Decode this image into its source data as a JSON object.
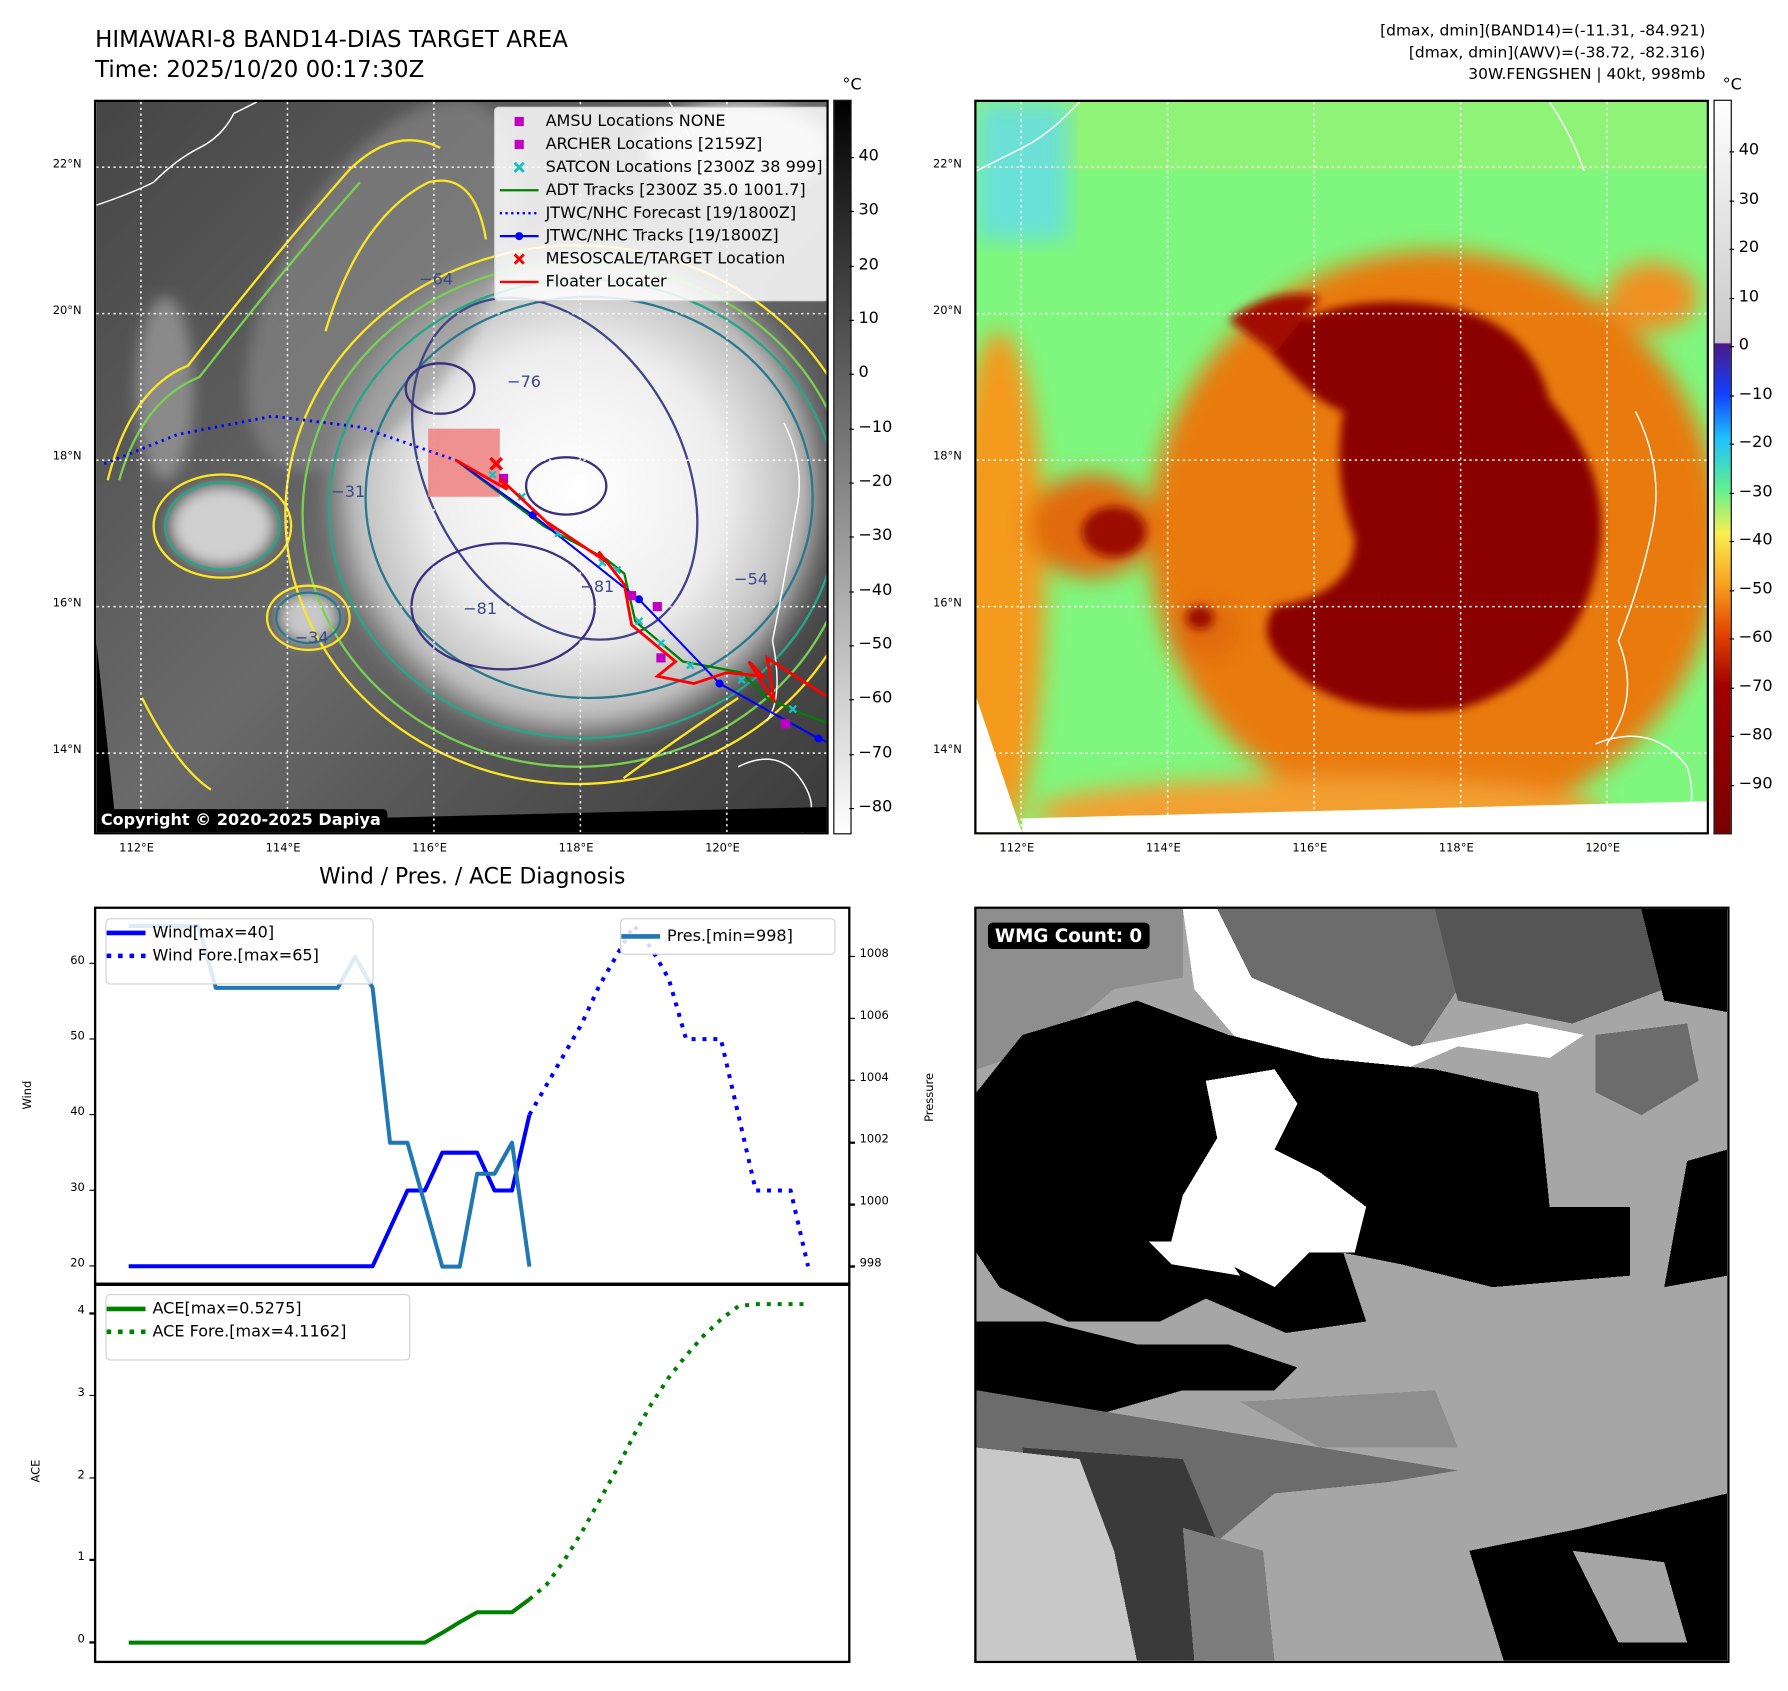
{
  "header": {
    "title": "HIMAWARI-8 BAND14-DIAS TARGET AREA",
    "time": "Time: 2025/10/20 00:17:30Z",
    "stats_band14": "[dmax, dmin](BAND14)=(-11.31, -84.921)",
    "stats_awv": "[dmax, dmin](AWV)=(-38.72, -82.316)",
    "storm": "30W.FENGSHEN | 40kt, 998mb"
  },
  "maps": {
    "unit": "°C",
    "lon_ticks": [
      "112°E",
      "114°E",
      "116°E",
      "118°E",
      "120°E"
    ],
    "lat_ticks": [
      "22°N",
      "20°N",
      "18°N",
      "16°N",
      "14°N"
    ],
    "left_colorbar_ticks": [
      "40",
      "30",
      "20",
      "10",
      "0",
      "−10",
      "−20",
      "−30",
      "−40",
      "−50",
      "−60",
      "−70",
      "−80"
    ],
    "right_colorbar_ticks": [
      "40",
      "30",
      "20",
      "10",
      "0",
      "−10",
      "−20",
      "−30",
      "−40",
      "−50",
      "−60",
      "−70",
      "−80",
      "−90"
    ],
    "copyright": "Copyright © 2020-2025 Dapiya",
    "legend": [
      {
        "label": "AMSU Locations NONE",
        "key": "square",
        "color": "#c000c0"
      },
      {
        "label": "ARCHER Locations [2159Z]",
        "key": "square",
        "color": "#c000c0"
      },
      {
        "label": "SATCON Locations [2300Z 38 999]",
        "key": "x",
        "color": "#17c0c0"
      },
      {
        "label": "ADT Tracks [2300Z 35.0 1001.7]",
        "key": "line",
        "color": "#008000"
      },
      {
        "label": "JTWC/NHC Forecast [19/1800Z]",
        "key": "dotted",
        "color": "#0000ff"
      },
      {
        "label": "JTWC/NHC Tracks [19/1800Z]",
        "key": "line-dot",
        "color": "#0000ff"
      },
      {
        "label": "MESOSCALE/TARGET Location",
        "key": "x",
        "color": "#ff0000"
      },
      {
        "label": "Floater Locater",
        "key": "line",
        "color": "#ff0000"
      }
    ],
    "contour_labels": [
      {
        "text": "−81",
        "lon": 118.0,
        "lat": 16.2
      },
      {
        "text": "−81",
        "lon": 116.4,
        "lat": 15.9
      },
      {
        "text": "−54",
        "lon": 120.1,
        "lat": 16.3
      },
      {
        "text": "−76",
        "lon": 117.0,
        "lat": 19.0
      },
      {
        "text": "−64",
        "lon": 115.8,
        "lat": 20.4
      },
      {
        "text": "−31",
        "lon": 114.6,
        "lat": 17.5
      },
      {
        "text": "−34",
        "lon": 114.1,
        "lat": 15.5
      }
    ],
    "tracks": {
      "jtwc_forecast": [
        [
          111.5,
          17.95
        ],
        [
          112.5,
          18.35
        ],
        [
          113.8,
          18.6
        ],
        [
          115.0,
          18.45
        ],
        [
          116.3,
          18.0
        ]
      ],
      "jtwc_track": [
        [
          116.3,
          18.0
        ],
        [
          117.35,
          17.25
        ],
        [
          118.8,
          16.1
        ],
        [
          119.9,
          14.95
        ],
        [
          121.25,
          14.2
        ],
        [
          121.5,
          14.1
        ]
      ],
      "jtwc_points": [
        [
          117.35,
          17.25
        ],
        [
          118.8,
          16.1
        ],
        [
          119.9,
          14.95
        ],
        [
          121.25,
          14.2
        ]
      ],
      "adt": [
        [
          116.3,
          18.0
        ],
        [
          117.5,
          17.1
        ],
        [
          118.35,
          16.65
        ],
        [
          118.6,
          16.45
        ],
        [
          118.75,
          15.8
        ],
        [
          119.4,
          15.25
        ],
        [
          120.2,
          15.1
        ],
        [
          120.55,
          14.75
        ],
        [
          121.0,
          14.55
        ],
        [
          121.4,
          14.4
        ]
      ],
      "floater": [
        [
          116.3,
          18.0
        ],
        [
          117.0,
          17.6
        ],
        [
          116.9,
          17.75
        ],
        [
          117.65,
          17.05
        ],
        [
          117.55,
          17.15
        ],
        [
          118.3,
          16.65
        ],
        [
          118.25,
          16.75
        ],
        [
          118.6,
          16.3
        ],
        [
          118.7,
          15.75
        ],
        [
          119.3,
          15.25
        ],
        [
          119.05,
          15.05
        ],
        [
          119.55,
          14.95
        ],
        [
          120.0,
          15.1
        ],
        [
          120.5,
          15.05
        ],
        [
          120.3,
          15.25
        ],
        [
          120.65,
          14.7
        ],
        [
          120.55,
          15.3
        ],
        [
          121.4,
          14.75
        ]
      ],
      "satcon": [
        [
          116.8,
          17.8
        ],
        [
          117.2,
          17.5
        ],
        [
          117.7,
          17.0
        ],
        [
          118.3,
          16.6
        ],
        [
          118.5,
          16.5
        ],
        [
          118.8,
          15.8
        ],
        [
          119.1,
          15.5
        ],
        [
          119.5,
          15.2
        ],
        [
          120.2,
          15.0
        ],
        [
          120.9,
          14.6
        ]
      ],
      "archer": [
        [
          116.95,
          17.75
        ],
        [
          118.7,
          16.15
        ],
        [
          119.05,
          16.0
        ],
        [
          119.1,
          15.3
        ],
        [
          120.8,
          14.4
        ]
      ],
      "target": [
        116.85,
        17.95
      ],
      "target_box": [
        115.92,
        17.5,
        116.9,
        18.43
      ]
    }
  },
  "diagnosis": {
    "title": "Wind / Pres. / ACE Diagnosis",
    "wmg_count": "WMG Count: 0"
  },
  "chart_data": [
    {
      "type": "line",
      "title": "Wind / Pres. / ACE Diagnosis",
      "ylabel": "Wind",
      "y2label": "Pressure",
      "xlim": [
        -1.86,
        41.3
      ],
      "ylim": [
        17.7,
        67.2
      ],
      "y2lim": [
        997.45,
        1009.55
      ],
      "yticks": [
        "20",
        "30",
        "40",
        "50",
        "60"
      ],
      "y2ticks": [
        "998",
        "1000",
        "1002",
        "1004",
        "1006",
        "1008"
      ],
      "series": [
        {
          "name": "Wind[max=40]",
          "axis": "left",
          "style": "solid",
          "color": "#0000ff",
          "x": [
            0,
            1,
            2,
            3,
            4,
            5,
            6,
            7,
            8,
            9,
            10,
            11,
            12,
            13,
            14,
            15,
            16,
            17,
            18,
            19,
            20,
            21,
            22,
            23
          ],
          "values": [
            20,
            20,
            20,
            20,
            20,
            20,
            20,
            20,
            20,
            20,
            20,
            20,
            20,
            20,
            20,
            25,
            30,
            30,
            35,
            35,
            35,
            30,
            30,
            40
          ]
        },
        {
          "name": "Wind Fore.[max=65]",
          "axis": "left",
          "style": "dotted",
          "color": "#0000ff",
          "x": [
            23,
            24,
            25,
            26,
            27,
            28,
            29,
            30,
            31,
            32,
            33,
            34,
            35,
            36,
            37,
            38,
            39
          ],
          "values": [
            40,
            44,
            48,
            52,
            57,
            61,
            65,
            62,
            58,
            50,
            50,
            50,
            40,
            30,
            30,
            30,
            20
          ]
        },
        {
          "name": "Pres.[min=998]",
          "axis": "right",
          "style": "solid",
          "color": "#1f77b4",
          "x": [
            0,
            1,
            2,
            3,
            4,
            5,
            6,
            7,
            8,
            9,
            10,
            11,
            12,
            13,
            14,
            15,
            16,
            17,
            18,
            19,
            20,
            21,
            22,
            23
          ],
          "values": [
            1009,
            1009,
            1009,
            1009,
            1009,
            1007,
            1007,
            1007,
            1007,
            1007,
            1007,
            1007,
            1007,
            1008,
            1007,
            1002,
            1002,
            1000,
            998,
            998,
            1001,
            1001,
            1002,
            998
          ]
        }
      ]
    },
    {
      "type": "line",
      "ylabel": "ACE",
      "xlim": [
        -1.86,
        41.3
      ],
      "ylim": [
        -0.22,
        4.35
      ],
      "yticks": [
        "0",
        "1",
        "2",
        "3",
        "4"
      ],
      "series": [
        {
          "name": "ACE[max=0.5275]",
          "style": "solid",
          "color": "#008000",
          "x": [
            0,
            1,
            2,
            3,
            4,
            5,
            6,
            7,
            8,
            9,
            10,
            11,
            12,
            13,
            14,
            15,
            16,
            17,
            18,
            19,
            20,
            21,
            22,
            23
          ],
          "values": [
            0,
            0,
            0,
            0,
            0,
            0,
            0,
            0,
            0,
            0,
            0,
            0,
            0,
            0,
            0,
            0,
            0,
            0,
            0.12,
            0.25,
            0.37,
            0.37,
            0.37,
            0.5275
          ]
        },
        {
          "name": "ACE Fore.[max=4.1162]",
          "style": "dotted",
          "color": "#008000",
          "x": [
            23,
            24,
            25,
            26,
            27,
            28,
            29,
            30,
            31,
            32,
            33,
            34,
            35,
            36,
            37,
            38,
            39
          ],
          "values": [
            0.5275,
            0.71,
            1.0,
            1.34,
            1.72,
            2.1,
            2.52,
            2.9,
            3.22,
            3.49,
            3.73,
            3.93,
            4.09,
            4.1162,
            4.1162,
            4.1162,
            4.1162
          ]
        }
      ]
    }
  ]
}
